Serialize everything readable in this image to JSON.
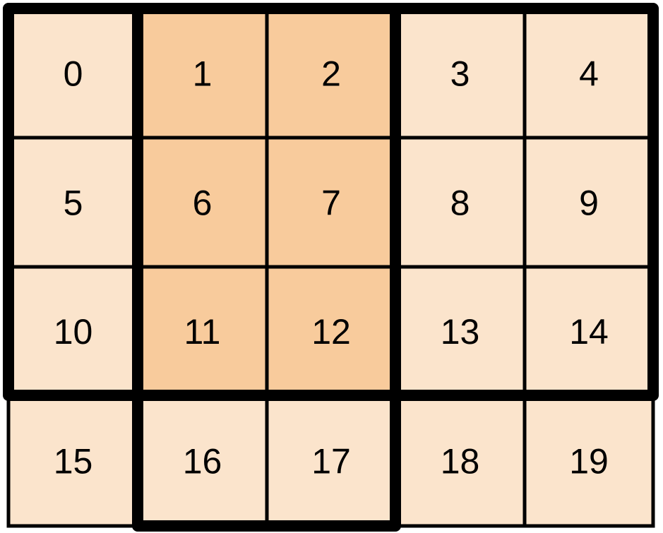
{
  "grid": {
    "rows": 4,
    "cols": 5,
    "labels": [
      "0",
      "1",
      "2",
      "3",
      "4",
      "5",
      "6",
      "7",
      "8",
      "9",
      "10",
      "11",
      "12",
      "13",
      "14",
      "15",
      "16",
      "17",
      "18",
      "19"
    ],
    "highlighted_cells": [
      "1",
      "2",
      "6",
      "7",
      "11",
      "12"
    ],
    "colors": {
      "cell": "#fbe4cc",
      "highlight": "#f8cb9c",
      "border": "#000000"
    },
    "bold_regions": [
      {
        "rows": [
          0,
          2
        ],
        "cols": [
          0,
          4
        ]
      },
      {
        "rows": [
          0,
          3
        ],
        "cols": [
          1,
          2
        ]
      }
    ]
  }
}
